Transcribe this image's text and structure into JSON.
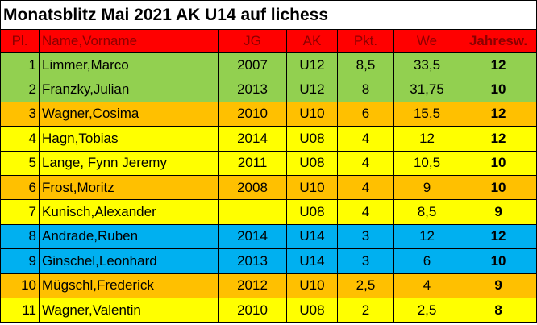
{
  "title": "Monatsblitz Mai 2021 AK U14 auf lichess",
  "table": {
    "header": [
      "Pl.",
      "Name,Vorname",
      "JG",
      "AK",
      "Pkt.",
      "We",
      "Jahresw."
    ],
    "header_color": "#ff0000",
    "rows": [
      {
        "color": "#92d050",
        "cells": [
          "1",
          "Limmer,Marco",
          "2007",
          "U12",
          "8,5",
          "33,5",
          "12"
        ]
      },
      {
        "color": "#92d050",
        "cells": [
          "2",
          "Franzky,Julian",
          "2013",
          "U12",
          "8",
          "31,75",
          "10"
        ]
      },
      {
        "color": "#ffc000",
        "cells": [
          "3",
          "Wagner,Cosima",
          "2010",
          "U10",
          "6",
          "15,5",
          "12"
        ]
      },
      {
        "color": "#ffff00",
        "cells": [
          "4",
          "Hagn,Tobias",
          "2014",
          "U08",
          "4",
          "12",
          "12"
        ]
      },
      {
        "color": "#ffff00",
        "cells": [
          "5",
          "Lange, Fynn Jeremy",
          "2011",
          "U08",
          "4",
          "10,5",
          "10"
        ]
      },
      {
        "color": "#ffc000",
        "cells": [
          "6",
          "Frost,Moritz",
          "2008",
          "U10",
          "4",
          "9",
          "10"
        ]
      },
      {
        "color": "#ffff00",
        "cells": [
          "7",
          "Kunisch,Alexander",
          null,
          "U08",
          "4",
          "8,5",
          "9"
        ]
      },
      {
        "color": "#00b0f0",
        "cells": [
          "8",
          "Andrade,Ruben",
          "2014",
          "U14",
          "3",
          "12",
          "12"
        ]
      },
      {
        "color": "#00b0f0",
        "cells": [
          "9",
          "Ginschel,Leonhard",
          "2013",
          "U14",
          "3",
          "6",
          "10"
        ]
      },
      {
        "color": "#ffc000",
        "cells": [
          "10",
          "Mügschl,Frederick",
          "2012",
          "U10",
          "2,5",
          "4",
          "9"
        ]
      },
      {
        "color": "#ffff00",
        "cells": [
          "11",
          "Wagner,Valentin",
          "2010",
          "U08",
          "2",
          "2,5",
          "8"
        ]
      }
    ]
  }
}
